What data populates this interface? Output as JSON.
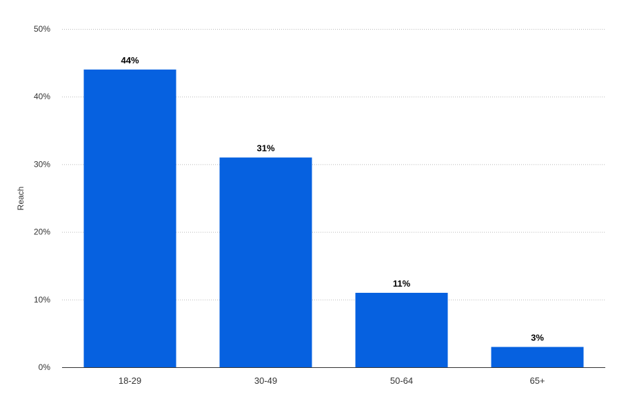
{
  "chart_data": {
    "type": "bar",
    "categories": [
      "18-29",
      "30-49",
      "50-64",
      "65+"
    ],
    "values": [
      44,
      31,
      11,
      3
    ],
    "data_labels": [
      "44%",
      "31%",
      "11%",
      "3%"
    ],
    "ylabel": "Reach",
    "xlabel": "",
    "ylim": [
      0,
      50
    ],
    "yticks": [
      0,
      10,
      20,
      30,
      40,
      50
    ],
    "ytick_labels": [
      "0%",
      "10%",
      "20%",
      "30%",
      "40%",
      "50%"
    ],
    "grid": true,
    "bar_color": "#0661e0"
  }
}
